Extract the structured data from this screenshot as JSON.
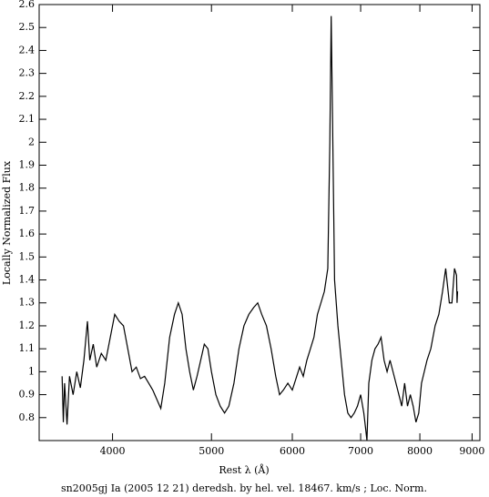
{
  "chart_data": {
    "type": "line",
    "caption": "sn2005gj Ia (2005 12 21) deredsh. by hel. vel. 18467. km/s ;  Loc. Norm.",
    "xlabel": "Rest λ (Å)",
    "ylabel": "Locally Normalized Flux",
    "xlog": true,
    "xlim": [
      3390,
      9160
    ],
    "ylim": [
      0.7,
      2.6
    ],
    "xticks": [
      4000,
      5000,
      6000,
      7000,
      8000,
      9000
    ],
    "yticks": [
      0.8,
      0.9,
      1,
      1.1,
      1.2,
      1.3,
      1.4,
      1.5,
      1.6,
      1.7,
      1.8,
      1.9,
      2,
      2.1,
      2.2,
      2.3,
      2.4,
      2.5,
      2.6
    ],
    "color": "#000000",
    "x": [
      3570,
      3580,
      3590,
      3610,
      3630,
      3660,
      3690,
      3720,
      3750,
      3780,
      3800,
      3830,
      3860,
      3900,
      3940,
      3980,
      4020,
      4060,
      4100,
      4140,
      4180,
      4220,
      4260,
      4300,
      4340,
      4380,
      4420,
      4460,
      4500,
      4550,
      4600,
      4640,
      4680,
      4720,
      4760,
      4800,
      4840,
      4880,
      4920,
      4960,
      5000,
      5050,
      5100,
      5150,
      5200,
      5260,
      5320,
      5380,
      5440,
      5500,
      5550,
      5600,
      5660,
      5720,
      5780,
      5830,
      5880,
      5940,
      6000,
      6050,
      6100,
      6150,
      6200,
      6250,
      6300,
      6350,
      6400,
      6450,
      6500,
      6530,
      6550,
      6570,
      6600,
      6650,
      6700,
      6750,
      6800,
      6850,
      6900,
      6950,
      7000,
      7050,
      7080,
      7100,
      7130,
      7180,
      7230,
      7280,
      7330,
      7380,
      7430,
      7480,
      7530,
      7580,
      7630,
      7680,
      7730,
      7780,
      7830,
      7880,
      7930,
      7980,
      8030,
      8080,
      8130,
      8200,
      8280,
      8350,
      8420,
      8480,
      8550,
      8600,
      8650,
      8690,
      8700,
      8710
    ],
    "values": [
      0.98,
      0.78,
      0.95,
      0.77,
      0.98,
      0.9,
      1.0,
      0.93,
      1.05,
      1.22,
      1.05,
      1.12,
      1.02,
      1.08,
      1.05,
      1.15,
      1.25,
      1.22,
      1.2,
      1.1,
      1.0,
      1.02,
      0.97,
      0.98,
      0.95,
      0.92,
      0.88,
      0.84,
      0.95,
      1.15,
      1.25,
      1.3,
      1.25,
      1.1,
      1.0,
      0.92,
      0.98,
      1.05,
      1.12,
      1.1,
      1.0,
      0.9,
      0.85,
      0.82,
      0.85,
      0.95,
      1.1,
      1.2,
      1.25,
      1.28,
      1.3,
      1.25,
      1.2,
      1.1,
      0.98,
      0.9,
      0.92,
      0.95,
      0.92,
      0.97,
      1.02,
      0.98,
      1.05,
      1.1,
      1.15,
      1.25,
      1.3,
      1.35,
      1.45,
      2.0,
      2.55,
      2.1,
      1.4,
      1.2,
      1.05,
      0.9,
      0.82,
      0.8,
      0.82,
      0.85,
      0.9,
      0.82,
      0.75,
      0.7,
      0.95,
      1.05,
      1.1,
      1.12,
      1.15,
      1.05,
      1.0,
      1.05,
      1.0,
      0.95,
      0.9,
      0.85,
      0.95,
      0.85,
      0.9,
      0.85,
      0.78,
      0.82,
      0.95,
      1.0,
      1.05,
      1.1,
      1.2,
      1.25,
      1.35,
      1.45,
      1.3,
      1.3,
      1.45,
      1.42,
      1.3,
      1.35
    ]
  }
}
